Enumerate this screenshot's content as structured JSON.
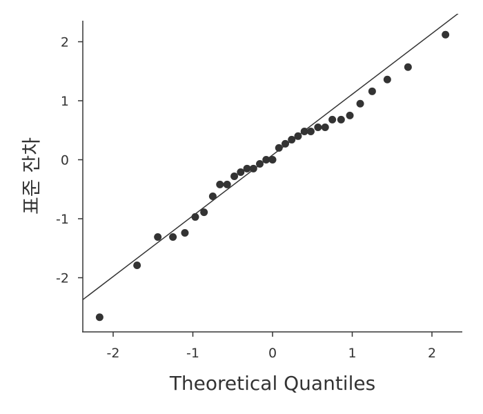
{
  "chart_data": {
    "type": "scatter",
    "title": "",
    "xlabel": "Theoretical Quantiles",
    "ylabel": "표준 잔차",
    "xlim": [
      -2.4,
      2.4
    ],
    "ylim": [
      -2.9,
      2.35
    ],
    "xticks": [
      -2,
      -1,
      0,
      1,
      2
    ],
    "yticks": [
      -2,
      -1,
      0,
      1,
      2
    ],
    "xtick_labels": [
      "-2",
      "-1",
      "0",
      "1",
      "2"
    ],
    "ytick_labels": [
      "-2",
      "-1",
      "0",
      "1",
      "2"
    ],
    "grid": false,
    "reference_line": {
      "slope": 1.03,
      "intercept": 0.08
    },
    "points": [
      {
        "x": -2.17,
        "y": -2.67
      },
      {
        "x": -1.7,
        "y": -1.79
      },
      {
        "x": -1.44,
        "y": -1.31
      },
      {
        "x": -1.25,
        "y": -1.31
      },
      {
        "x": -1.1,
        "y": -1.24
      },
      {
        "x": -0.97,
        "y": -0.97
      },
      {
        "x": -0.86,
        "y": -0.89
      },
      {
        "x": -0.75,
        "y": -0.62
      },
      {
        "x": -0.66,
        "y": -0.42
      },
      {
        "x": -0.57,
        "y": -0.42
      },
      {
        "x": -0.48,
        "y": -0.28
      },
      {
        "x": -0.4,
        "y": -0.21
      },
      {
        "x": -0.32,
        "y": -0.15
      },
      {
        "x": -0.24,
        "y": -0.15
      },
      {
        "x": -0.16,
        "y": -0.07
      },
      {
        "x": -0.08,
        "y": 0.0
      },
      {
        "x": 0.0,
        "y": 0.0
      },
      {
        "x": 0.08,
        "y": 0.2
      },
      {
        "x": 0.16,
        "y": 0.27
      },
      {
        "x": 0.24,
        "y": 0.34
      },
      {
        "x": 0.32,
        "y": 0.4
      },
      {
        "x": 0.4,
        "y": 0.48
      },
      {
        "x": 0.48,
        "y": 0.48
      },
      {
        "x": 0.57,
        "y": 0.55
      },
      {
        "x": 0.66,
        "y": 0.55
      },
      {
        "x": 0.75,
        "y": 0.68
      },
      {
        "x": 0.86,
        "y": 0.68
      },
      {
        "x": 0.97,
        "y": 0.75
      },
      {
        "x": 1.1,
        "y": 0.95
      },
      {
        "x": 1.25,
        "y": 1.16
      },
      {
        "x": 1.44,
        "y": 1.36
      },
      {
        "x": 1.7,
        "y": 1.57
      },
      {
        "x": 2.17,
        "y": 2.12
      }
    ],
    "colors": {
      "points": "#333333",
      "line": "#333333",
      "axes": "#333333"
    }
  }
}
